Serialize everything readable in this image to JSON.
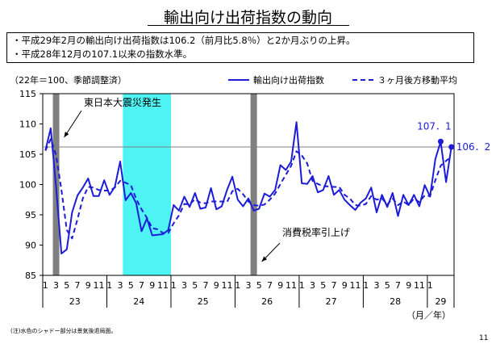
{
  "title": "輸出向け出荷指数の動向",
  "bullets": [
    "・平成29年2月の輸出向け出荷指数は106.2（前月比5.8％）と2か月ぶりの上昇。",
    "・平成28年12月の107.1以来の指数水準。"
  ],
  "footnote": "(注)水色のシャドー部分は景気後退局面。",
  "page_number": "11",
  "colors": {
    "series": "#1c1cd8",
    "shade_recession": "#4ff3f3",
    "shade_event": "#808080",
    "reference_line": "#808080"
  },
  "chart_data": {
    "type": "line",
    "units_note": "（22年＝100、季節調整済）",
    "ylim": [
      85,
      115
    ],
    "yticks": [
      85,
      90,
      95,
      100,
      105,
      110,
      115
    ],
    "x_month_labels": [
      "1",
      "3",
      "5",
      "7",
      "9",
      "11",
      "1",
      "3",
      "5",
      "7",
      "9",
      "11",
      "1",
      "3",
      "5",
      "7",
      "9",
      "11",
      "1",
      "3",
      "5",
      "7",
      "9",
      "11",
      "1",
      "3",
      "5",
      "7",
      "9",
      "11",
      "1",
      "3",
      "5",
      "7",
      "9",
      "11",
      "1"
    ],
    "x_year_labels": [
      "23",
      "24",
      "25",
      "26",
      "27",
      "28",
      "29"
    ],
    "x_axis_unit": "（月／年）",
    "series": [
      {
        "name": "輸出向け出荷指数",
        "style": "solid",
        "values": [
          105.6,
          109.3,
          99.5,
          88.6,
          89.3,
          95.4,
          98.2,
          99.5,
          101.0,
          98.1,
          98.1,
          100.7,
          98.3,
          99.6,
          103.8,
          97.4,
          98.6,
          96.9,
          92.3,
          94.4,
          91.6,
          91.7,
          91.8,
          92.5,
          96.6,
          95.7,
          98.0,
          96.3,
          98.6,
          96.0,
          96.2,
          99.4,
          95.9,
          96.4,
          99.1,
          101.3,
          97.5,
          96.4,
          97.7,
          95.7,
          96.0,
          98.5,
          98.0,
          99.1,
          103.2,
          102.4,
          103.8,
          110.3,
          100.2,
          100.1,
          101.4,
          98.7,
          99.1,
          101.4,
          98.3,
          99.1,
          97.5,
          96.6,
          95.8,
          97.0,
          97.7,
          99.5,
          95.4,
          98.3,
          96.3,
          98.6,
          94.8,
          98.3,
          96.6,
          98.3,
          96.4,
          99.9,
          98.0,
          104.2,
          107.1,
          100.4,
          106.2
        ]
      },
      {
        "name": "３ヶ月後方移動平均",
        "style": "dashed",
        "values": [
          105.6,
          107.5,
          104.8,
          99.1,
          92.5,
          91.1,
          94.3,
          97.7,
          99.6,
          99.5,
          99.1,
          99.0,
          99.0,
          99.5,
          100.6,
          100.3,
          99.9,
          97.6,
          95.9,
          94.5,
          92.8,
          92.6,
          92.0,
          92.0,
          93.6,
          94.9,
          96.8,
          96.7,
          97.6,
          97.0,
          96.9,
          97.2,
          97.2,
          97.2,
          97.1,
          98.9,
          99.3,
          98.4,
          97.2,
          96.6,
          96.5,
          96.7,
          97.5,
          98.5,
          100.1,
          101.6,
          103.1,
          105.5,
          104.8,
          103.5,
          100.6,
          100.1,
          99.7,
          99.7,
          99.6,
          99.6,
          98.3,
          97.7,
          96.6,
          96.5,
          96.8,
          98.1,
          97.5,
          97.7,
          96.7,
          97.7,
          96.6,
          97.2,
          96.6,
          97.7,
          97.1,
          98.2,
          98.1,
          100.7,
          103.1,
          103.9,
          104.6
        ]
      }
    ],
    "reference_value": 106.2,
    "point_labels": [
      {
        "index": 74,
        "text": "107．1"
      },
      {
        "index": 76,
        "text": "106．2"
      }
    ],
    "shaded_periods": [
      {
        "kind": "event",
        "start_index": 2,
        "end_index": 2
      },
      {
        "kind": "recession",
        "start_index": 15,
        "end_index": 24
      },
      {
        "kind": "event",
        "start_index": 39,
        "end_index": 39
      }
    ],
    "annotations": [
      {
        "text": "東日本大震災発生",
        "target_index": 2
      },
      {
        "text": "消費税率引上げ",
        "target_index": 39
      }
    ]
  }
}
